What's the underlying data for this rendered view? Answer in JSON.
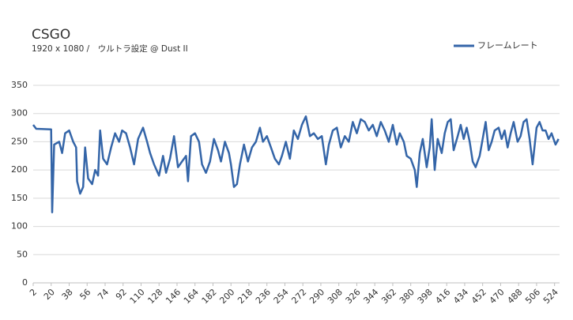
{
  "chart_data": {
    "type": "line",
    "title": "CSGO",
    "subtitle": "1920 x 1080 /　ウルトラ設定 @ Dust II",
    "legend": "top-right",
    "grid": true,
    "xlim": [
      2,
      529
    ],
    "xticks": [
      2,
      20,
      38,
      56,
      74,
      92,
      110,
      128,
      146,
      164,
      182,
      200,
      218,
      236,
      254,
      272,
      290,
      308,
      326,
      344,
      362,
      380,
      398,
      416,
      434,
      452,
      470,
      488,
      506,
      524
    ],
    "ylim": [
      0,
      350
    ],
    "yticks": [
      0,
      50,
      100,
      150,
      200,
      250,
      300,
      350
    ],
    "series": [
      {
        "name": "フレームレート",
        "color": "#3465a8",
        "x": [
          2,
          5,
          20,
          21,
          23,
          28,
          31,
          34,
          38,
          42,
          45,
          46,
          49,
          52,
          54,
          57,
          61,
          64,
          67,
          69,
          72,
          76,
          80,
          84,
          88,
          91,
          95,
          99,
          103,
          107,
          112,
          116,
          119,
          123,
          128,
          132,
          135,
          139,
          143,
          147,
          151,
          155,
          157,
          160,
          164,
          168,
          171,
          175,
          179,
          183,
          187,
          190,
          194,
          198,
          200,
          203,
          206,
          209,
          213,
          217,
          221,
          225,
          229,
          232,
          236,
          240,
          244,
          248,
          251,
          255,
          259,
          263,
          267,
          271,
          275,
          279,
          283,
          287,
          291,
          295,
          298,
          302,
          306,
          310,
          314,
          318,
          322,
          326,
          330,
          334,
          338,
          342,
          346,
          350,
          354,
          358,
          362,
          366,
          369,
          373,
          376,
          380,
          384,
          386,
          389,
          392,
          396,
          399,
          401,
          404,
          407,
          411,
          414,
          417,
          420,
          423,
          427,
          430,
          433,
          436,
          439,
          442,
          445,
          449,
          452,
          455,
          458,
          461,
          464,
          468,
          471,
          474,
          477,
          480,
          483,
          487,
          490,
          493,
          496,
          499,
          502,
          506,
          509,
          512,
          515,
          518,
          521,
          525,
          528
        ],
        "values": [
          280,
          273,
          272,
          125,
          245,
          250,
          230,
          265,
          270,
          250,
          240,
          180,
          158,
          170,
          240,
          185,
          175,
          200,
          190,
          270,
          220,
          210,
          240,
          265,
          250,
          270,
          265,
          240,
          210,
          255,
          275,
          250,
          230,
          210,
          190,
          225,
          195,
          220,
          260,
          205,
          215,
          225,
          180,
          260,
          265,
          250,
          210,
          195,
          215,
          255,
          235,
          215,
          250,
          230,
          210,
          170,
          175,
          210,
          245,
          215,
          240,
          250,
          275,
          250,
          260,
          240,
          220,
          210,
          225,
          250,
          220,
          270,
          255,
          280,
          295,
          260,
          265,
          255,
          260,
          210,
          245,
          270,
          275,
          240,
          260,
          250,
          285,
          265,
          290,
          285,
          270,
          280,
          260,
          285,
          270,
          250,
          280,
          245,
          265,
          250,
          225,
          220,
          200,
          170,
          230,
          255,
          205,
          240,
          290,
          200,
          255,
          230,
          265,
          285,
          290,
          235,
          260,
          280,
          255,
          275,
          250,
          215,
          205,
          225,
          255,
          285,
          235,
          250,
          270,
          275,
          255,
          270,
          240,
          265,
          285,
          250,
          260,
          285,
          290,
          255,
          210,
          275,
          285,
          270,
          270,
          255,
          265,
          245,
          255
        ]
      }
    ]
  }
}
